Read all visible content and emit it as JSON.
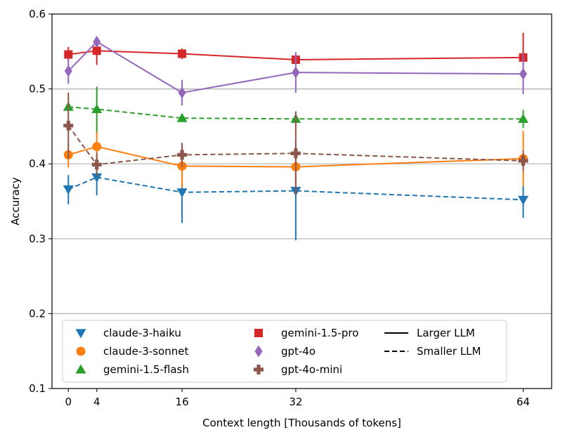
{
  "chart_data": {
    "type": "line",
    "xlabel": "Context length [Thousands of tokens]",
    "ylabel": "Accuracy",
    "xlim": [
      -2.3,
      68
    ],
    "ylim": [
      0.1,
      0.6
    ],
    "x_ticks": [
      0,
      4,
      16,
      32,
      64
    ],
    "x_tick_labels": [
      "0",
      "4",
      "16",
      "32",
      "64"
    ],
    "y_ticks": [
      0.1,
      0.2,
      0.3,
      0.4,
      0.5,
      0.6
    ],
    "y_tick_labels": [
      "0.1",
      "0.2",
      "0.3",
      "0.4",
      "0.5",
      "0.6"
    ],
    "y_grid": true,
    "legend_position": "lower-center",
    "series": [
      {
        "name": "claude-3-haiku",
        "color": "#1f77b4",
        "marker": "triangle-down",
        "style": "dashed",
        "x": [
          0,
          4,
          16,
          32,
          64
        ],
        "values": [
          0.366,
          0.382,
          0.362,
          0.364,
          0.352
        ],
        "err_low": [
          0.346,
          0.358,
          0.321,
          0.298,
          0.328
        ],
        "err_high": [
          0.385,
          0.404,
          0.403,
          0.43,
          0.376
        ]
      },
      {
        "name": "claude-3-sonnet",
        "color": "#ff7f0e",
        "marker": "circle",
        "style": "solid",
        "x": [
          0,
          4,
          16,
          32,
          64
        ],
        "values": [
          0.412,
          0.423,
          0.397,
          0.396,
          0.407
        ],
        "err_low": [
          0.395,
          0.402,
          0.368,
          0.372,
          0.37
        ],
        "err_high": [
          0.429,
          0.444,
          0.426,
          0.42,
          0.444
        ]
      },
      {
        "name": "gemini-1.5-flash",
        "color": "#2ca02c",
        "marker": "triangle-up",
        "style": "dashed",
        "x": [
          0,
          4,
          16,
          32,
          64
        ],
        "values": [
          0.476,
          0.473,
          0.461,
          0.46,
          0.46
        ],
        "err_low": [
          0.472,
          0.443,
          0.457,
          0.45,
          0.448
        ],
        "err_high": [
          0.48,
          0.503,
          0.465,
          0.47,
          0.472
        ]
      },
      {
        "name": "gemini-1.5-pro",
        "color": "#d62728",
        "marker": "square",
        "style": "solid",
        "x": [
          0,
          4,
          16,
          32,
          64
        ],
        "values": [
          0.546,
          0.551,
          0.547,
          0.539,
          0.542
        ],
        "err_low": [
          0.536,
          0.532,
          0.54,
          0.532,
          0.51
        ],
        "err_high": [
          0.556,
          0.57,
          0.554,
          0.546,
          0.575
        ]
      },
      {
        "name": "gpt-4o",
        "color": "#9467bd",
        "marker": "diamond",
        "style": "solid",
        "x": [
          0,
          4,
          16,
          32,
          64
        ],
        "values": [
          0.524,
          0.563,
          0.495,
          0.522,
          0.52
        ],
        "err_low": [
          0.507,
          0.556,
          0.478,
          0.495,
          0.493
        ],
        "err_high": [
          0.541,
          0.57,
          0.512,
          0.549,
          0.547
        ]
      },
      {
        "name": "gpt-4o-mini",
        "color": "#8c564b",
        "marker": "plus",
        "style": "dashed",
        "x": [
          0,
          4,
          16,
          32,
          64
        ],
        "values": [
          0.451,
          0.399,
          0.412,
          0.414,
          0.404
        ],
        "err_low": [
          0.407,
          0.383,
          0.396,
          0.358,
          0.39
        ],
        "err_high": [
          0.495,
          0.415,
          0.428,
          0.47,
          0.418
        ]
      }
    ],
    "legend": {
      "entries": [
        "claude-3-haiku",
        "claude-3-sonnet",
        "gemini-1.5-flash",
        "gemini-1.5-pro",
        "gpt-4o",
        "gpt-4o-mini"
      ],
      "style_entries": [
        {
          "label": "Larger LLM",
          "style": "solid"
        },
        {
          "label": "Smaller LLM",
          "style": "dashed"
        }
      ]
    }
  }
}
